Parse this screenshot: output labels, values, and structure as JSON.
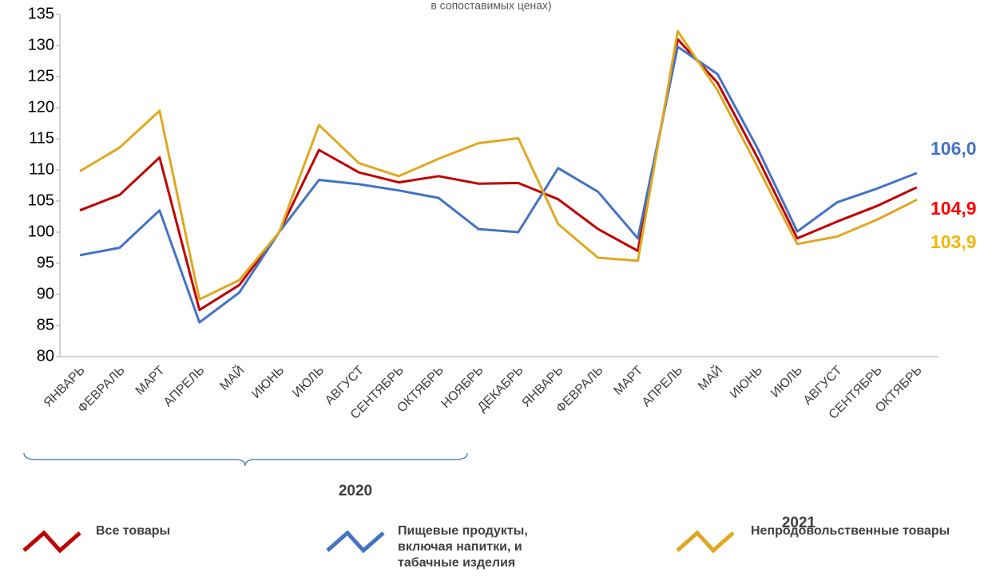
{
  "chart_data": {
    "type": "line",
    "subtitle": "в сопоставимых ценах)",
    "categories": [
      "ЯНВАРЬ",
      "ФЕВРАЛЬ",
      "МАРТ",
      "АПРЕЛЬ",
      "МАЙ",
      "ИЮНЬ",
      "ИЮЛЬ",
      "АВГУСТ",
      "СЕНТЯБРЬ",
      "ОКТЯБРЬ",
      "НОЯБРЬ",
      "ДЕКАБРЬ",
      "ЯНВАРЬ",
      "ФЕВРАЛЬ",
      "МАРТ",
      "АПРЕЛЬ",
      "МАЙ",
      "ИЮНЬ",
      "ИЮЛЬ",
      "АВГУСТ",
      "СЕНТЯБРЬ",
      "ОКТЯБРЬ"
    ],
    "series": [
      {
        "name": "Все товары",
        "color": "#c00000",
        "values": [
          103.5,
          106,
          112,
          87.5,
          91.5,
          100,
          113.2,
          109.6,
          108,
          109,
          107.8,
          107.9,
          105.3,
          100.5,
          97,
          131,
          124,
          112,
          99,
          101.7,
          104.2,
          107.2
        ]
      },
      {
        "name": "Пищевые продукты, включая напитки, и табачные изделия",
        "color": "#4472c4",
        "values": [
          96.3,
          97.5,
          103.5,
          85.5,
          90.3,
          100,
          108.4,
          107.7,
          106.7,
          105.5,
          100.5,
          100,
          110.3,
          106.5,
          99,
          129.8,
          125.4,
          113.5,
          100.1,
          104.8,
          107,
          109.5
        ]
      },
      {
        "name": "Непродовольственные товары",
        "color": "#e0a820",
        "values": [
          109.8,
          113.6,
          119.5,
          89.2,
          92.3,
          100,
          117.2,
          111.1,
          109,
          111.8,
          114.3,
          115.1,
          101.3,
          95.9,
          95.4,
          132.3,
          122.8,
          110.5,
          98.1,
          99.3,
          102,
          105.2
        ]
      }
    ],
    "annotations": [
      {
        "text": "106,0",
        "color": "#4472c4"
      },
      {
        "text": "104,9",
        "color": "#ff0000"
      },
      {
        "text": "103,9",
        "color": "#f2b705"
      }
    ],
    "year_labels": [
      "2020",
      "2021"
    ],
    "ylim": [
      80,
      135
    ],
    "yticks": [
      80,
      85,
      90,
      95,
      100,
      105,
      110,
      115,
      120,
      125,
      130,
      135
    ]
  }
}
